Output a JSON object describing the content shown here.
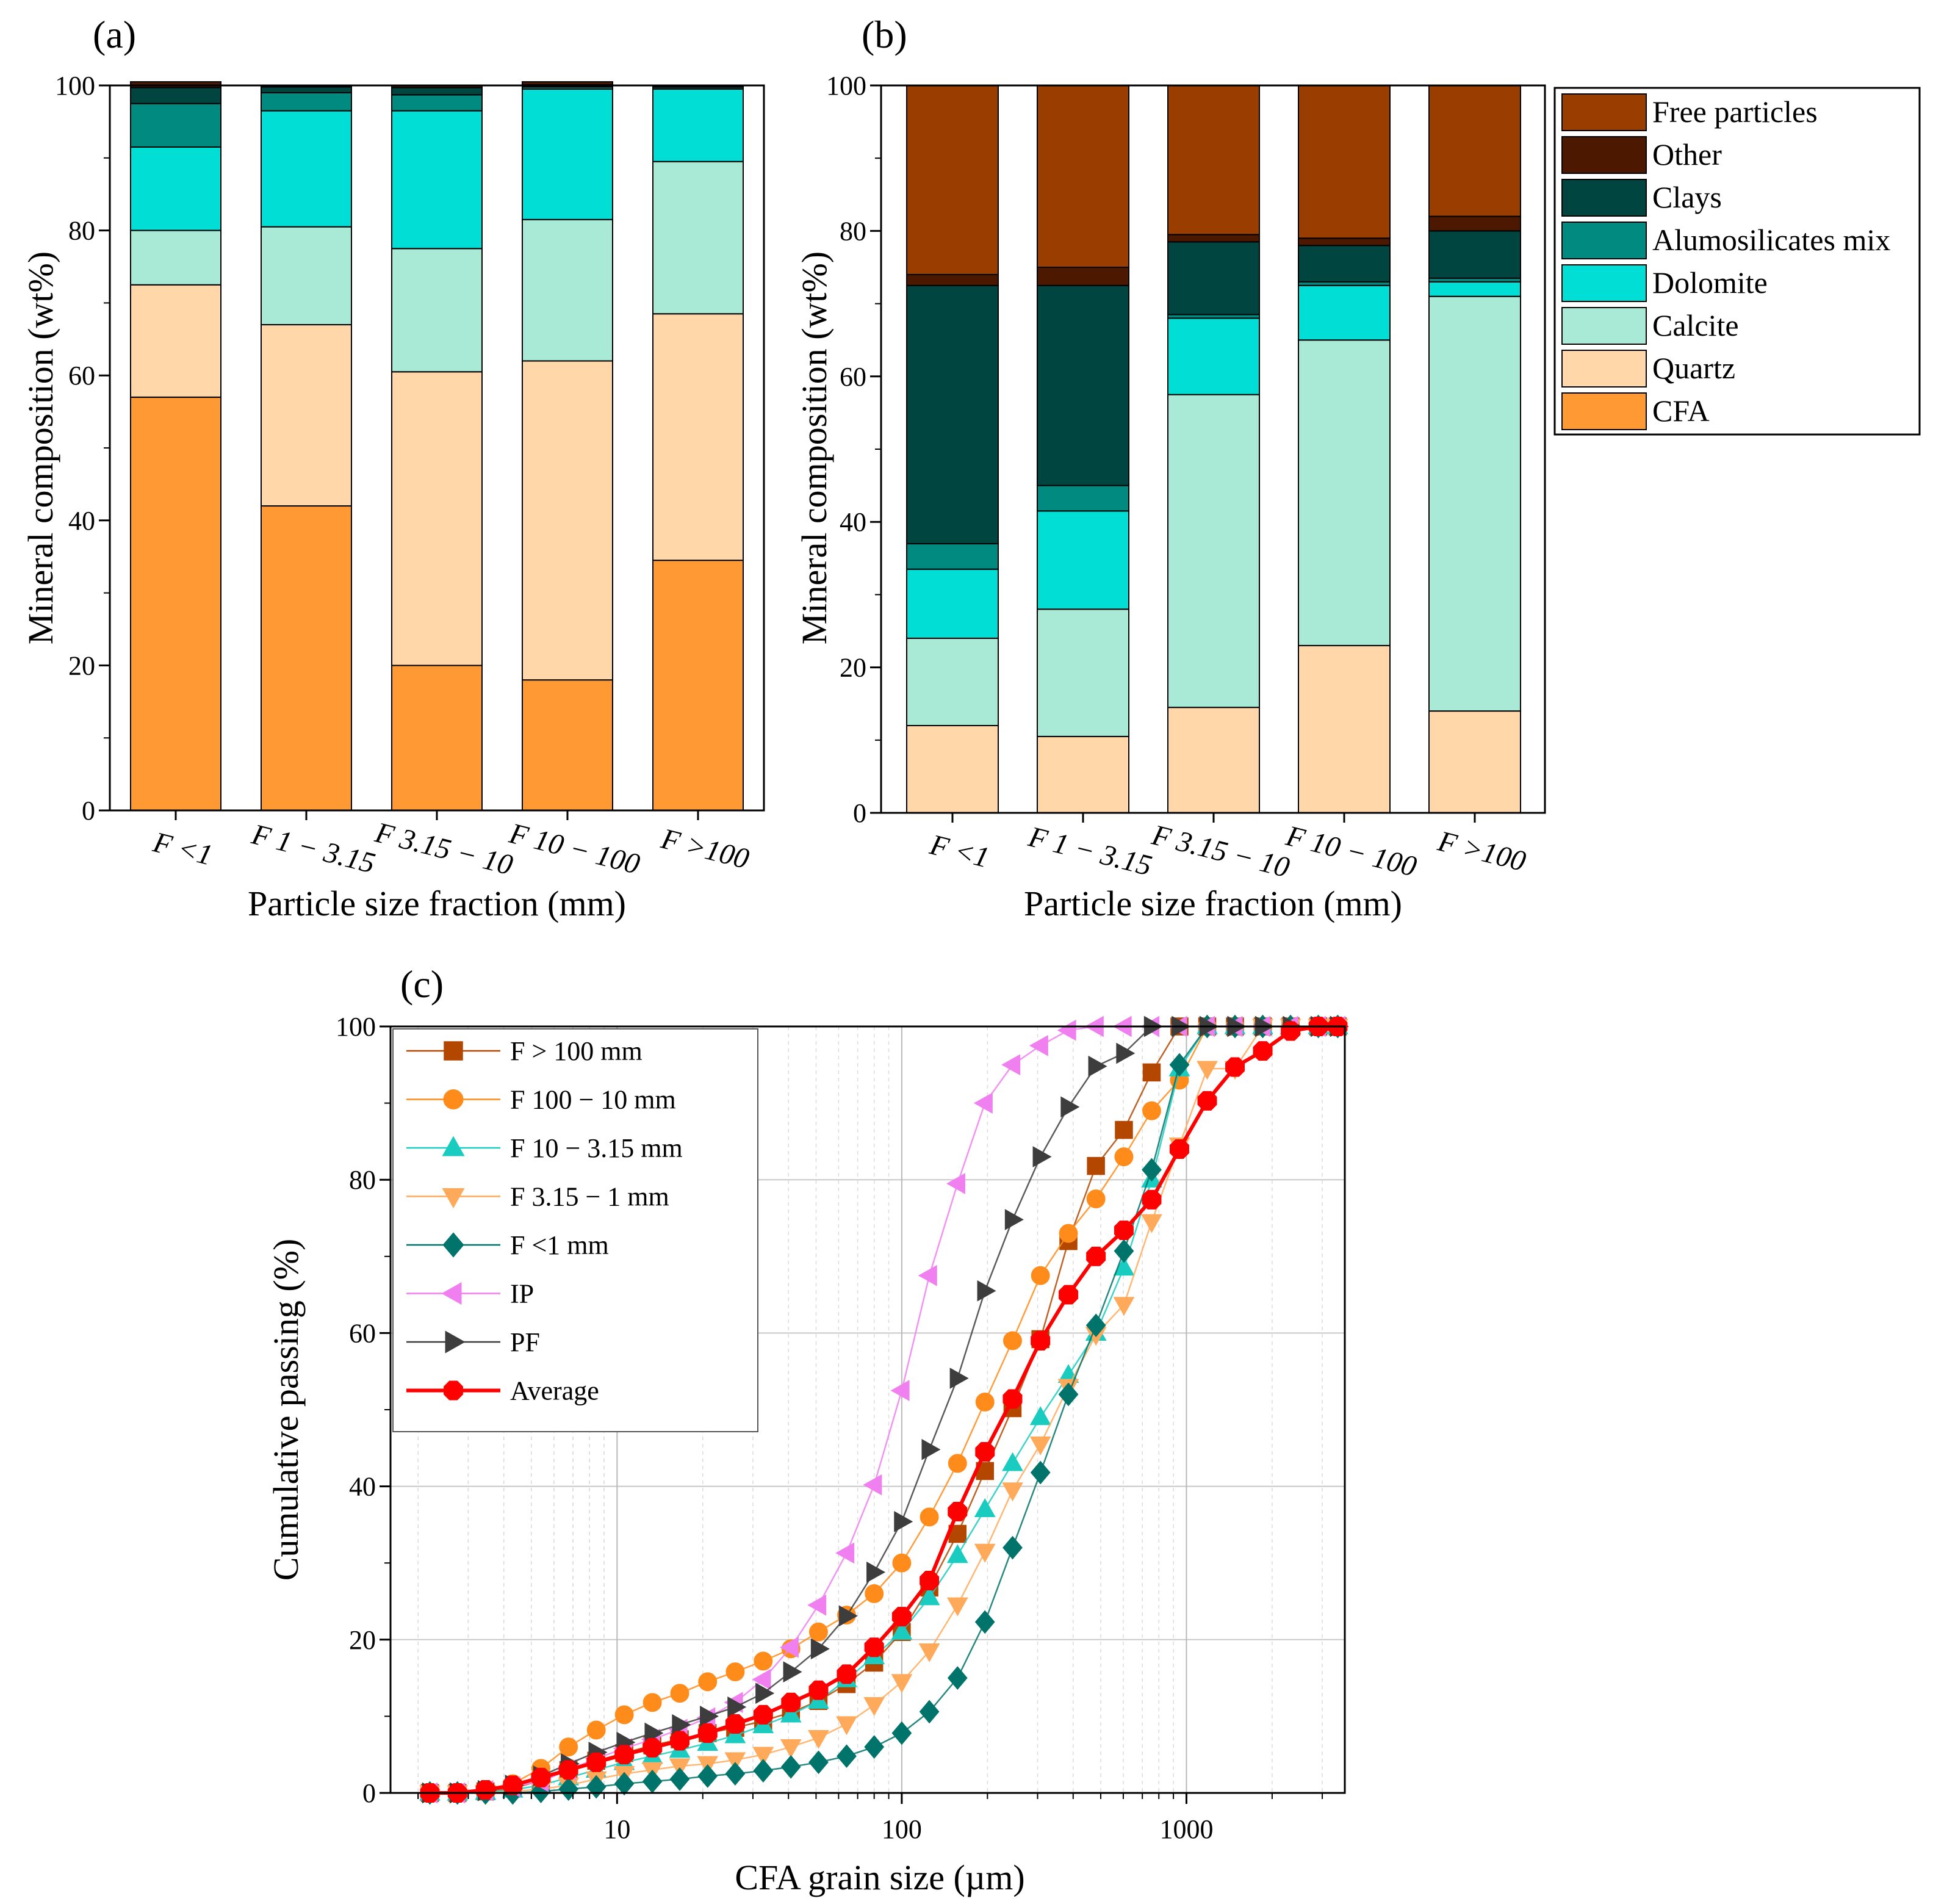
{
  "chart_data": [
    {
      "id": "a",
      "type": "stacked-bar",
      "panel_label": "(a)",
      "xlabel": "Particle size fraction (mm)",
      "ylabel": "Mineral composition (wt%)",
      "ylim": [
        0,
        100
      ],
      "yticks": [
        "0",
        "20",
        "40",
        "60",
        "80",
        "100"
      ],
      "categories": [
        "F <1",
        "F 1 − 3.15",
        "F 3.15 − 10",
        "F 10 − 100",
        "F >100"
      ],
      "series": [
        {
          "name": "CFA",
          "color": "#FF9933",
          "values": [
            57,
            42,
            20,
            18,
            34.5
          ]
        },
        {
          "name": "Quartz",
          "color": "#FFD7A8",
          "values": [
            15.5,
            25,
            40.5,
            44,
            34
          ]
        },
        {
          "name": "Calcite",
          "color": "#A8EAD6",
          "values": [
            7.5,
            13.5,
            17,
            19.5,
            21
          ]
        },
        {
          "name": "Dolomite",
          "color": "#00DED6",
          "values": [
            11.5,
            16,
            19,
            18,
            10
          ]
        },
        {
          "name": "Alumosilicates mix",
          "color": "#008A80",
          "values": [
            6,
            2.5,
            2.2,
            0.3,
            0
          ]
        },
        {
          "name": "Clays",
          "color": "#00453F",
          "values": [
            2.2,
            0.8,
            1.0,
            0.3,
            0.3
          ]
        },
        {
          "name": "Other",
          "color": "#4D1800",
          "values": [
            0.8,
            0.2,
            0.3,
            0.4,
            0.2
          ]
        }
      ]
    },
    {
      "id": "b",
      "type": "stacked-bar",
      "panel_label": "(b)",
      "xlabel": "Particle size fraction (mm)",
      "ylabel": "Mineral composition (wt%)",
      "ylim": [
        0,
        100
      ],
      "yticks": [
        "0",
        "20",
        "40",
        "60",
        "80",
        "100"
      ],
      "categories": [
        "F <1",
        "F 1 − 3.15",
        "F 3.15 − 10",
        "F 10 − 100",
        "F >100"
      ],
      "series": [
        {
          "name": "Quartz",
          "color": "#FFD7A8",
          "values": [
            12,
            10.5,
            14.5,
            23,
            14
          ]
        },
        {
          "name": "Calcite",
          "color": "#A8EAD6",
          "values": [
            12,
            17.5,
            43,
            42,
            57
          ]
        },
        {
          "name": "Dolomite",
          "color": "#00DED6",
          "values": [
            9.5,
            13.5,
            10.5,
            7.5,
            2
          ]
        },
        {
          "name": "Alumosilicates mix",
          "color": "#008A80",
          "values": [
            3.5,
            3.5,
            0.5,
            0.5,
            0.5
          ]
        },
        {
          "name": "Clays",
          "color": "#00453F",
          "values": [
            35.5,
            27.5,
            10,
            5,
            6.5
          ]
        },
        {
          "name": "Other",
          "color": "#4D1800",
          "values": [
            1.5,
            2.5,
            1,
            1,
            2
          ]
        },
        {
          "name": "Free particles",
          "color": "#993D00",
          "values": [
            26,
            25,
            20.5,
            21,
            18
          ]
        }
      ]
    },
    {
      "id": "c",
      "type": "line",
      "panel_label": "(c)",
      "xlabel": "CFA grain size (µm)",
      "ylabel": "Cumulative passing (%)",
      "xscale": "log",
      "xlim": [
        1.6,
        3600
      ],
      "ylim": [
        0,
        100
      ],
      "xticks": [
        "10",
        "100",
        "1000"
      ],
      "yticks": [
        "0",
        "20",
        "40",
        "60",
        "80",
        "100"
      ],
      "grid": true,
      "x": [
        2.2,
        2.75,
        3.45,
        4.3,
        5.4,
        6.75,
        8.45,
        10.6,
        13.3,
        16.6,
        20.8,
        26,
        32.6,
        40.8,
        51,
        64,
        80,
        100,
        125,
        157,
        196,
        245,
        307,
        385,
        481,
        603,
        755,
        945,
        1183,
        1481,
        1854,
        2322,
        2906,
        3400
      ],
      "series": [
        {
          "name": "F > 100 mm",
          "color": "#B34700",
          "marker": "square",
          "values": [
            0,
            0,
            0.2,
            0.6,
            1.6,
            3,
            4.2,
            5.2,
            6.2,
            7,
            7.8,
            8.5,
            9.4,
            10.5,
            12,
            14.2,
            17,
            21,
            26.8,
            33.8,
            42,
            50.2,
            59.2,
            72,
            81.8,
            86.5,
            94,
            100,
            100,
            100,
            100,
            100,
            100,
            100
          ]
        },
        {
          "name": "F 100 − 10 mm",
          "color": "#FF8C1A",
          "marker": "circle",
          "values": [
            0,
            0,
            0.4,
            1.2,
            3.2,
            6,
            8.2,
            10.2,
            11.8,
            13,
            14.5,
            15.8,
            17.2,
            18.8,
            21,
            23.2,
            26,
            30,
            36,
            43,
            51,
            59,
            67.5,
            73,
            77.5,
            83,
            89,
            93,
            100,
            100,
            100,
            100,
            100,
            100
          ]
        },
        {
          "name": "F 10 − 3.15 mm",
          "color": "#1ACCC0",
          "marker": "triangle-up",
          "values": [
            0,
            0,
            0.1,
            0.4,
            1,
            2,
            3,
            4,
            4.8,
            5.6,
            6.5,
            7.5,
            8.8,
            10.2,
            12,
            14.8,
            17.8,
            21,
            25.5,
            31,
            37,
            43,
            49,
            54.5,
            60,
            68.5,
            80,
            94.5,
            100,
            100,
            100,
            100,
            100,
            100
          ]
        },
        {
          "name": "F 3.15 − 1 mm",
          "color": "#FFAA5A",
          "marker": "triangle-down",
          "values": [
            0,
            0,
            0,
            0.2,
            0.5,
            1,
            1.8,
            2.5,
            3,
            3.5,
            3.8,
            4.3,
            5,
            6,
            7.2,
            9,
            11.5,
            14.5,
            18.5,
            24.5,
            31.5,
            39.5,
            45.5,
            53,
            59.8,
            63.7,
            74.5,
            84.5,
            94.5,
            94.5,
            100,
            100,
            100,
            100
          ]
        },
        {
          "name": "F <1 mm",
          "color": "#00736A",
          "marker": "diamond",
          "values": [
            0,
            0,
            0,
            0,
            0.2,
            0.5,
            0.8,
            1.2,
            1.5,
            1.8,
            2.2,
            2.5,
            2.9,
            3.4,
            4,
            4.8,
            6,
            7.8,
            10.6,
            15,
            22.3,
            32,
            41.8,
            52,
            61,
            70.7,
            81.3,
            95,
            100,
            100,
            100,
            100,
            100,
            100
          ]
        },
        {
          "name": "IP",
          "color": "#F080F0",
          "marker": "triangle-left",
          "values": [
            0,
            0,
            0.3,
            0.8,
            1.5,
            3,
            4.5,
            5.8,
            7,
            8.3,
            9.8,
            11.8,
            14.8,
            19,
            24.5,
            31.3,
            40.2,
            52.5,
            67.5,
            79.5,
            90,
            95,
            97.5,
            99.5,
            100,
            100,
            100,
            100,
            100,
            100,
            100,
            100,
            100,
            100
          ]
        },
        {
          "name": "PF",
          "color": "#3D3D3D",
          "marker": "triangle-right",
          "values": [
            0,
            0,
            0.3,
            1,
            2.2,
            3.8,
            5.3,
            6.6,
            7.8,
            8.9,
            10,
            11.2,
            13,
            15.8,
            18.8,
            23.1,
            28.8,
            35.4,
            44.8,
            54.1,
            65.5,
            74.8,
            83,
            89.5,
            94.8,
            96.5,
            100,
            100,
            100,
            100,
            100,
            100,
            100,
            100
          ]
        },
        {
          "name": "Average",
          "color": "#FF0000",
          "marker": "octagon",
          "values": [
            0,
            0,
            0.4,
            1,
            2,
            3,
            4,
            5,
            5.9,
            6.8,
            7.8,
            9,
            10.2,
            11.8,
            13.4,
            15.5,
            19,
            23,
            27.7,
            36.7,
            44.5,
            51.4,
            59,
            65,
            70,
            73.4,
            77.4,
            84,
            90.3,
            94.7,
            96.8,
            99.4,
            100,
            100
          ]
        }
      ]
    }
  ]
}
